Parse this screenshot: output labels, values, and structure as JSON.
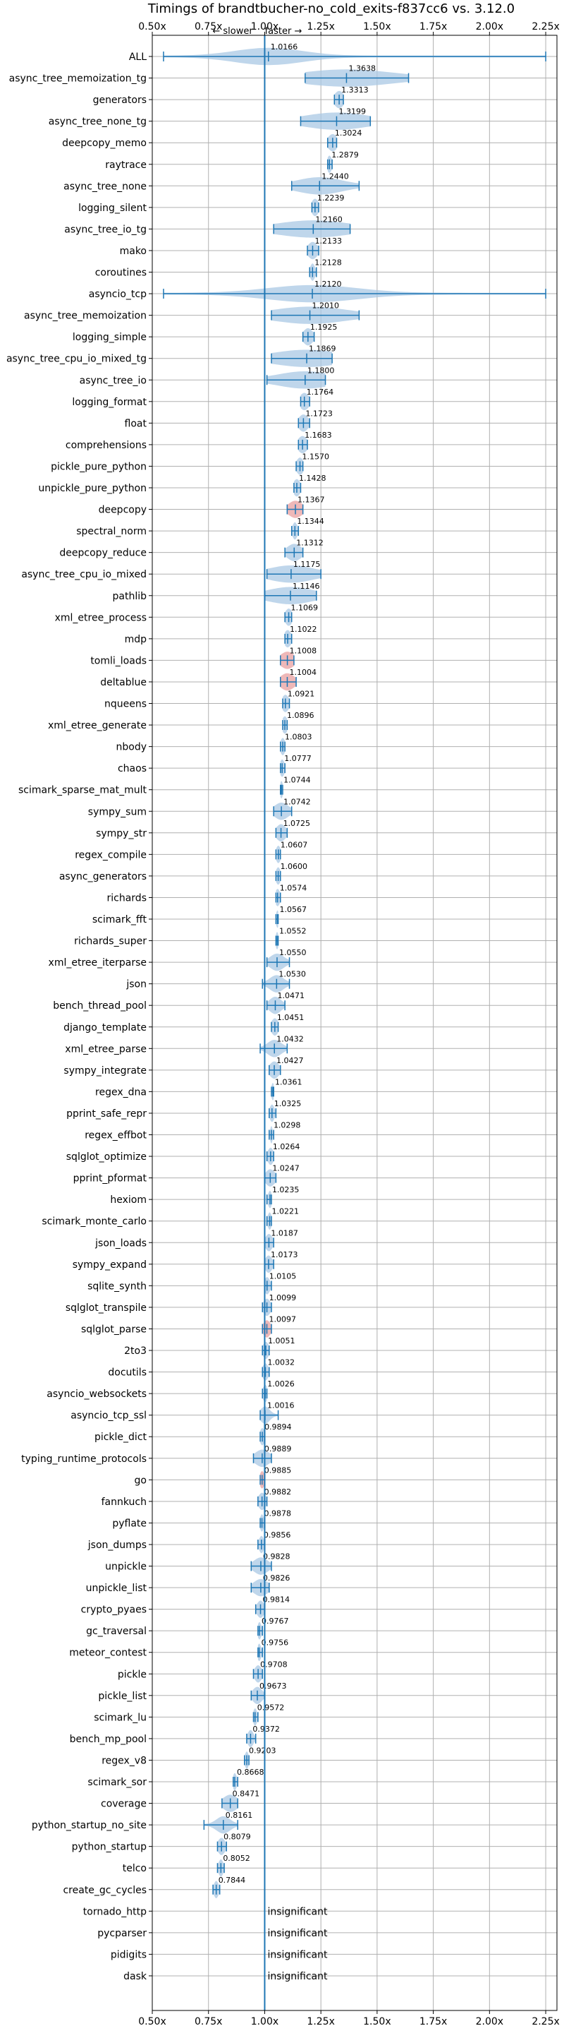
{
  "chart_data": {
    "type": "violin",
    "title": "Timings of brandtbucher-no_cold_exits-f837cc6 vs. 3.12.0",
    "annotations": {
      "slower": "← slower",
      "faster": "faster →"
    },
    "xlim": [
      0.5,
      2.3
    ],
    "xticks": [
      "0.50x",
      "0.75x",
      "1.00x",
      "1.25x",
      "1.50x",
      "1.75x",
      "2.00x",
      "2.25x"
    ],
    "xtick_values": [
      0.5,
      0.75,
      1.0,
      1.25,
      1.5,
      1.75,
      2.0,
      2.25
    ],
    "reference_line": 1.0,
    "grid": true,
    "colors": {
      "violin": "#a9c8e4",
      "line": "#1f77b4",
      "insignificant": "#e8a0a0"
    },
    "insignificant_text": "insignificant",
    "benchmarks": [
      {
        "name": "ALL",
        "value": 1.0166,
        "label": "1.0166",
        "min": 0.55,
        "max": 2.25,
        "spread": 0.15,
        "sig": true
      },
      {
        "name": "async_tree_memoization_tg",
        "value": 1.3638,
        "label": "1.3638",
        "min": 1.18,
        "max": 1.64,
        "spread": 0.2,
        "sig": true
      },
      {
        "name": "generators",
        "value": 1.3313,
        "label": "1.3313",
        "min": 1.31,
        "max": 1.35,
        "spread": 0.02,
        "sig": true
      },
      {
        "name": "async_tree_none_tg",
        "value": 1.3199,
        "label": "1.3199",
        "min": 1.16,
        "max": 1.47,
        "spread": 0.14,
        "sig": true
      },
      {
        "name": "deepcopy_memo",
        "value": 1.3024,
        "label": "1.3024",
        "min": 1.28,
        "max": 1.32,
        "spread": 0.02,
        "sig": true
      },
      {
        "name": "raytrace",
        "value": 1.2879,
        "label": "1.2879",
        "min": 1.28,
        "max": 1.3,
        "spread": 0.01,
        "sig": true
      },
      {
        "name": "async_tree_none",
        "value": 1.244,
        "label": "1.2440",
        "min": 1.12,
        "max": 1.42,
        "spread": 0.1,
        "sig": true
      },
      {
        "name": "logging_silent",
        "value": 1.2239,
        "label": "1.2239",
        "min": 1.21,
        "max": 1.24,
        "spread": 0.015,
        "sig": true
      },
      {
        "name": "async_tree_io_tg",
        "value": 1.216,
        "label": "1.2160",
        "min": 1.04,
        "max": 1.38,
        "spread": 0.16,
        "sig": true
      },
      {
        "name": "mako",
        "value": 1.2133,
        "label": "1.2133",
        "min": 1.19,
        "max": 1.24,
        "spread": 0.02,
        "sig": true
      },
      {
        "name": "coroutines",
        "value": 1.2128,
        "label": "1.2128",
        "min": 1.2,
        "max": 1.23,
        "spread": 0.01,
        "sig": true
      },
      {
        "name": "asyncio_tcp",
        "value": 1.212,
        "label": "1.2120",
        "min": 0.55,
        "max": 2.25,
        "spread": 0.2,
        "sig": true
      },
      {
        "name": "async_tree_memoization",
        "value": 1.201,
        "label": "1.2010",
        "min": 1.03,
        "max": 1.42,
        "spread": 0.16,
        "sig": true
      },
      {
        "name": "logging_simple",
        "value": 1.1925,
        "label": "1.1925",
        "min": 1.17,
        "max": 1.22,
        "spread": 0.02,
        "sig": true
      },
      {
        "name": "async_tree_cpu_io_mixed_tg",
        "value": 1.1869,
        "label": "1.1869",
        "min": 1.03,
        "max": 1.3,
        "spread": 0.15,
        "sig": true
      },
      {
        "name": "async_tree_io",
        "value": 1.18,
        "label": "1.1800",
        "min": 1.01,
        "max": 1.27,
        "spread": 0.12,
        "sig": true
      },
      {
        "name": "logging_format",
        "value": 1.1764,
        "label": "1.1764",
        "min": 1.16,
        "max": 1.2,
        "spread": 0.02,
        "sig": true
      },
      {
        "name": "float",
        "value": 1.1723,
        "label": "1.1723",
        "min": 1.15,
        "max": 1.2,
        "spread": 0.02,
        "sig": true
      },
      {
        "name": "comprehensions",
        "value": 1.1683,
        "label": "1.1683",
        "min": 1.15,
        "max": 1.19,
        "spread": 0.02,
        "sig": true
      },
      {
        "name": "pickle_pure_python",
        "value": 1.157,
        "label": "1.1570",
        "min": 1.14,
        "max": 1.17,
        "spread": 0.015,
        "sig": true
      },
      {
        "name": "unpickle_pure_python",
        "value": 1.1428,
        "label": "1.1428",
        "min": 1.13,
        "max": 1.16,
        "spread": 0.015,
        "sig": true
      },
      {
        "name": "deepcopy",
        "value": 1.1367,
        "label": "1.1367",
        "min": 1.1,
        "max": 1.17,
        "spread": 0.03,
        "sig": false
      },
      {
        "name": "spectral_norm",
        "value": 1.1344,
        "label": "1.1344",
        "min": 1.12,
        "max": 1.15,
        "spread": 0.01,
        "sig": true
      },
      {
        "name": "deepcopy_reduce",
        "value": 1.1312,
        "label": "1.1312",
        "min": 1.09,
        "max": 1.17,
        "spread": 0.03,
        "sig": true
      },
      {
        "name": "async_tree_cpu_io_mixed",
        "value": 1.1175,
        "label": "1.1175",
        "min": 1.01,
        "max": 1.25,
        "spread": 0.1,
        "sig": true
      },
      {
        "name": "pathlib",
        "value": 1.1146,
        "label": "1.1146",
        "min": 1.0,
        "max": 1.23,
        "spread": 0.1,
        "sig": true
      },
      {
        "name": "xml_etree_process",
        "value": 1.1069,
        "label": "1.1069",
        "min": 1.09,
        "max": 1.12,
        "spread": 0.015,
        "sig": true
      },
      {
        "name": "mdp",
        "value": 1.1022,
        "label": "1.1022",
        "min": 1.09,
        "max": 1.12,
        "spread": 0.015,
        "sig": true
      },
      {
        "name": "tomli_loads",
        "value": 1.1008,
        "label": "1.1008",
        "min": 1.07,
        "max": 1.13,
        "spread": 0.03,
        "sig": false
      },
      {
        "name": "deltablue",
        "value": 1.1004,
        "label": "1.1004",
        "min": 1.07,
        "max": 1.14,
        "spread": 0.03,
        "sig": false
      },
      {
        "name": "nqueens",
        "value": 1.0921,
        "label": "1.0921",
        "min": 1.08,
        "max": 1.11,
        "spread": 0.015,
        "sig": true
      },
      {
        "name": "xml_etree_generate",
        "value": 1.0896,
        "label": "1.0896",
        "min": 1.08,
        "max": 1.1,
        "spread": 0.012,
        "sig": true
      },
      {
        "name": "nbody",
        "value": 1.0803,
        "label": "1.0803",
        "min": 1.07,
        "max": 1.09,
        "spread": 0.01,
        "sig": true
      },
      {
        "name": "chaos",
        "value": 1.0777,
        "label": "1.0777",
        "min": 1.07,
        "max": 1.09,
        "spread": 0.01,
        "sig": true
      },
      {
        "name": "scimark_sparse_mat_mult",
        "value": 1.0744,
        "label": "1.0744",
        "min": 1.07,
        "max": 1.08,
        "spread": 0.006,
        "sig": true
      },
      {
        "name": "sympy_sum",
        "value": 1.0742,
        "label": "1.0742",
        "min": 1.04,
        "max": 1.12,
        "spread": 0.03,
        "sig": true
      },
      {
        "name": "sympy_str",
        "value": 1.0725,
        "label": "1.0725",
        "min": 1.05,
        "max": 1.1,
        "spread": 0.02,
        "sig": true
      },
      {
        "name": "regex_compile",
        "value": 1.0607,
        "label": "1.0607",
        "min": 1.05,
        "max": 1.07,
        "spread": 0.01,
        "sig": true
      },
      {
        "name": "async_generators",
        "value": 1.06,
        "label": "1.0600",
        "min": 1.05,
        "max": 1.07,
        "spread": 0.01,
        "sig": true
      },
      {
        "name": "richards",
        "value": 1.0574,
        "label": "1.0574",
        "min": 1.05,
        "max": 1.07,
        "spread": 0.01,
        "sig": true
      },
      {
        "name": "scimark_fft",
        "value": 1.0567,
        "label": "1.0567",
        "min": 1.05,
        "max": 1.06,
        "spread": 0.006,
        "sig": true
      },
      {
        "name": "richards_super",
        "value": 1.0552,
        "label": "1.0552",
        "min": 1.05,
        "max": 1.06,
        "spread": 0.006,
        "sig": true
      },
      {
        "name": "xml_etree_iterparse",
        "value": 1.055,
        "label": "1.0550",
        "min": 1.01,
        "max": 1.11,
        "spread": 0.03,
        "sig": true
      },
      {
        "name": "json",
        "value": 1.053,
        "label": "1.0530",
        "min": 0.99,
        "max": 1.11,
        "spread": 0.03,
        "sig": true
      },
      {
        "name": "bench_thread_pool",
        "value": 1.0471,
        "label": "1.0471",
        "min": 1.01,
        "max": 1.09,
        "spread": 0.025,
        "sig": true
      },
      {
        "name": "django_template",
        "value": 1.0451,
        "label": "1.0451",
        "min": 1.03,
        "max": 1.06,
        "spread": 0.015,
        "sig": true
      },
      {
        "name": "xml_etree_parse",
        "value": 1.0432,
        "label": "1.0432",
        "min": 0.98,
        "max": 1.1,
        "spread": 0.03,
        "sig": true
      },
      {
        "name": "sympy_integrate",
        "value": 1.0427,
        "label": "1.0427",
        "min": 1.02,
        "max": 1.07,
        "spread": 0.02,
        "sig": true
      },
      {
        "name": "regex_dna",
        "value": 1.0361,
        "label": "1.0361",
        "min": 1.03,
        "max": 1.04,
        "spread": 0.006,
        "sig": true
      },
      {
        "name": "pprint_safe_repr",
        "value": 1.0325,
        "label": "1.0325",
        "min": 1.02,
        "max": 1.05,
        "spread": 0.01,
        "sig": true
      },
      {
        "name": "regex_effbot",
        "value": 1.0298,
        "label": "1.0298",
        "min": 1.02,
        "max": 1.04,
        "spread": 0.005,
        "sig": true
      },
      {
        "name": "sqlglot_optimize",
        "value": 1.0264,
        "label": "1.0264",
        "min": 1.01,
        "max": 1.04,
        "spread": 0.012,
        "sig": true
      },
      {
        "name": "pprint_pformat",
        "value": 1.0247,
        "label": "1.0247",
        "min": 1.0,
        "max": 1.05,
        "spread": 0.02,
        "sig": true
      },
      {
        "name": "hexiom",
        "value": 1.0235,
        "label": "1.0235",
        "min": 1.01,
        "max": 1.03,
        "spread": 0.008,
        "sig": true
      },
      {
        "name": "scimark_monte_carlo",
        "value": 1.0221,
        "label": "1.0221",
        "min": 1.01,
        "max": 1.03,
        "spread": 0.008,
        "sig": true
      },
      {
        "name": "json_loads",
        "value": 1.0187,
        "label": "1.0187",
        "min": 1.0,
        "max": 1.04,
        "spread": 0.015,
        "sig": true
      },
      {
        "name": "sympy_expand",
        "value": 1.0173,
        "label": "1.0173",
        "min": 1.0,
        "max": 1.04,
        "spread": 0.015,
        "sig": true
      },
      {
        "name": "sqlite_synth",
        "value": 1.0105,
        "label": "1.0105",
        "min": 1.0,
        "max": 1.03,
        "spread": 0.012,
        "sig": true
      },
      {
        "name": "sqlglot_transpile",
        "value": 1.0099,
        "label": "1.0099",
        "min": 0.99,
        "max": 1.03,
        "spread": 0.015,
        "sig": true
      },
      {
        "name": "sqlglot_parse",
        "value": 1.0097,
        "label": "1.0097",
        "min": 0.99,
        "max": 1.03,
        "spread": 0.015,
        "sig": false
      },
      {
        "name": "2to3",
        "value": 1.0051,
        "label": "1.0051",
        "min": 0.99,
        "max": 1.02,
        "spread": 0.012,
        "sig": true
      },
      {
        "name": "docutils",
        "value": 1.0032,
        "label": "1.0032",
        "min": 0.99,
        "max": 1.02,
        "spread": 0.012,
        "sig": true
      },
      {
        "name": "asyncio_websockets",
        "value": 1.0026,
        "label": "1.0026",
        "min": 0.99,
        "max": 1.01,
        "spread": 0.01,
        "sig": true
      },
      {
        "name": "asyncio_tcp_ssl",
        "value": 1.0016,
        "label": "1.0016",
        "min": 0.98,
        "max": 1.06,
        "spread": 0.02,
        "sig": true
      },
      {
        "name": "pickle_dict",
        "value": 0.9894,
        "label": "0.9894",
        "min": 0.98,
        "max": 1.0,
        "spread": 0.01,
        "sig": true
      },
      {
        "name": "typing_runtime_protocols",
        "value": 0.9889,
        "label": "0.9889",
        "min": 0.95,
        "max": 1.03,
        "spread": 0.03,
        "sig": true
      },
      {
        "name": "go",
        "value": 0.9885,
        "label": "0.9885",
        "min": 0.98,
        "max": 1.0,
        "spread": 0.01,
        "sig": false
      },
      {
        "name": "fannkuch",
        "value": 0.9882,
        "label": "0.9882",
        "min": 0.97,
        "max": 1.01,
        "spread": 0.015,
        "sig": true
      },
      {
        "name": "pyflate",
        "value": 0.9878,
        "label": "0.9878",
        "min": 0.98,
        "max": 1.0,
        "spread": 0.008,
        "sig": true
      },
      {
        "name": "json_dumps",
        "value": 0.9856,
        "label": "0.9856",
        "min": 0.97,
        "max": 1.0,
        "spread": 0.01,
        "sig": true
      },
      {
        "name": "unpickle",
        "value": 0.9828,
        "label": "0.9828",
        "min": 0.94,
        "max": 1.03,
        "spread": 0.03,
        "sig": true
      },
      {
        "name": "unpickle_list",
        "value": 0.9826,
        "label": "0.9826",
        "min": 0.94,
        "max": 1.02,
        "spread": 0.03,
        "sig": true
      },
      {
        "name": "crypto_pyaes",
        "value": 0.9814,
        "label": "0.9814",
        "min": 0.96,
        "max": 1.0,
        "spread": 0.015,
        "sig": true
      },
      {
        "name": "gc_traversal",
        "value": 0.9767,
        "label": "0.9767",
        "min": 0.97,
        "max": 0.99,
        "spread": 0.008,
        "sig": true
      },
      {
        "name": "meteor_contest",
        "value": 0.9756,
        "label": "0.9756",
        "min": 0.97,
        "max": 0.99,
        "spread": 0.008,
        "sig": true
      },
      {
        "name": "pickle",
        "value": 0.9708,
        "label": "0.9708",
        "min": 0.95,
        "max": 0.99,
        "spread": 0.015,
        "sig": true
      },
      {
        "name": "pickle_list",
        "value": 0.9673,
        "label": "0.9673",
        "min": 0.94,
        "max": 1.0,
        "spread": 0.02,
        "sig": true
      },
      {
        "name": "scimark_lu",
        "value": 0.9572,
        "label": "0.9572",
        "min": 0.95,
        "max": 0.97,
        "spread": 0.008,
        "sig": true
      },
      {
        "name": "bench_mp_pool",
        "value": 0.9372,
        "label": "0.9372",
        "min": 0.92,
        "max": 0.96,
        "spread": 0.012,
        "sig": true
      },
      {
        "name": "regex_v8",
        "value": 0.9203,
        "label": "0.9203",
        "min": 0.91,
        "max": 0.93,
        "spread": 0.008,
        "sig": true
      },
      {
        "name": "scimark_sor",
        "value": 0.8668,
        "label": "0.8668",
        "min": 0.86,
        "max": 0.88,
        "spread": 0.008,
        "sig": true
      },
      {
        "name": "coverage",
        "value": 0.8471,
        "label": "0.8471",
        "min": 0.81,
        "max": 0.88,
        "spread": 0.03,
        "sig": true
      },
      {
        "name": "python_startup_no_site",
        "value": 0.8161,
        "label": "0.8161",
        "min": 0.73,
        "max": 0.88,
        "spread": 0.03,
        "sig": true
      },
      {
        "name": "python_startup",
        "value": 0.8079,
        "label": "0.8079",
        "min": 0.79,
        "max": 0.83,
        "spread": 0.015,
        "sig": true
      },
      {
        "name": "telco",
        "value": 0.8052,
        "label": "0.8052",
        "min": 0.79,
        "max": 0.82,
        "spread": 0.01,
        "sig": true
      },
      {
        "name": "create_gc_cycles",
        "value": 0.7844,
        "label": "0.7844",
        "min": 0.77,
        "max": 0.8,
        "spread": 0.01,
        "sig": true
      },
      {
        "name": "tornado_http",
        "value": null,
        "label": "insignificant",
        "insignificant": true
      },
      {
        "name": "pycparser",
        "value": null,
        "label": "insignificant",
        "insignificant": true
      },
      {
        "name": "pidigits",
        "value": null,
        "label": "insignificant",
        "insignificant": true
      },
      {
        "name": "dask",
        "value": null,
        "label": "insignificant",
        "insignificant": true
      }
    ]
  }
}
